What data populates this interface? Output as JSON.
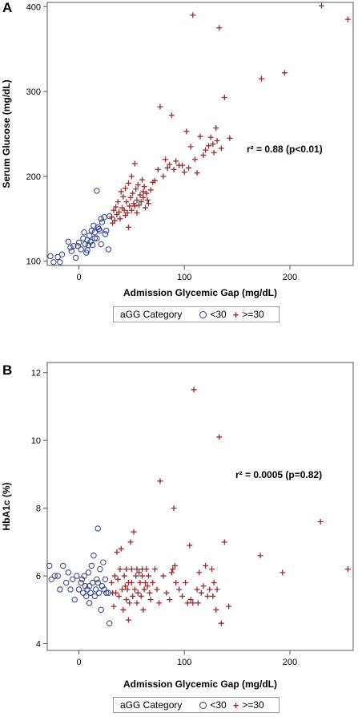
{
  "panels": [
    {
      "letter": "A"
    },
    {
      "letter": "B"
    }
  ],
  "legend": {
    "title": "aGG Category",
    "items": [
      {
        "label": "<30",
        "marker": "circle",
        "color": "#2f3f8f"
      },
      {
        "label": ">=30",
        "marker": "plus",
        "color": "#9b2b2b"
      }
    ]
  },
  "chart_data": [
    {
      "type": "scatter",
      "title": "",
      "xlabel": "Admission Glycemic Gap (mg/dL)",
      "ylabel": "Serum Glucose (mg/dL)",
      "xlim": [
        -30,
        260
      ],
      "ylim": [
        95,
        405
      ],
      "xticks": [
        0,
        100,
        200
      ],
      "yticks": [
        100,
        200,
        300,
        400
      ],
      "annotation": "r² = 0.88 (p<0.01)",
      "legend_position": "bottom",
      "series": [
        {
          "name": "<30",
          "marker": "circle",
          "color": "#2f3f8f",
          "points": [
            [
              -27,
              106
            ],
            [
              -24,
              99
            ],
            [
              -20,
              105
            ],
            [
              -18,
              99
            ],
            [
              -16,
              108
            ],
            [
              -10,
              123
            ],
            [
              -8,
              116
            ],
            [
              -7,
              112
            ],
            [
              -5,
              118
            ],
            [
              -3,
              104
            ],
            [
              -1,
              118
            ],
            [
              0,
              122
            ],
            [
              2,
              114
            ],
            [
              4,
              127
            ],
            [
              5,
              134
            ],
            [
              6,
              120
            ],
            [
              7,
              110
            ],
            [
              8,
              113
            ],
            [
              8,
              125
            ],
            [
              9,
              119
            ],
            [
              10,
              130
            ],
            [
              11,
              123
            ],
            [
              12,
              136
            ],
            [
              13,
              119
            ],
            [
              14,
              142
            ],
            [
              15,
              127
            ],
            [
              15,
              134
            ],
            [
              17,
              127
            ],
            [
              17,
              183
            ],
            [
              18,
              140
            ],
            [
              19,
              138
            ],
            [
              20,
              136
            ],
            [
              21,
              120
            ],
            [
              21,
              150
            ],
            [
              22,
              146
            ],
            [
              24,
              152
            ],
            [
              25,
              132
            ],
            [
              26,
              136
            ],
            [
              28,
              114
            ],
            [
              29,
              153
            ]
          ]
        },
        {
          "name": ">=30",
          "marker": "plus",
          "color": "#9b2b2b",
          "points": [
            [
              31,
              152
            ],
            [
              32,
              145
            ],
            [
              33,
              160
            ],
            [
              34,
              148
            ],
            [
              35,
              164
            ],
            [
              36,
              155
            ],
            [
              37,
              170
            ],
            [
              38,
              158
            ],
            [
              39,
              150
            ],
            [
              40,
              182
            ],
            [
              41,
              163
            ],
            [
              42,
              176
            ],
            [
              43,
              160
            ],
            [
              44,
              154
            ],
            [
              44,
              186
            ],
            [
              45,
              170
            ],
            [
              46,
              157
            ],
            [
              47,
              192
            ],
            [
              47,
              140
            ],
            [
              48,
              165
            ],
            [
              49,
              175
            ],
            [
              50,
              160
            ],
            [
              50,
              200
            ],
            [
              51,
              180
            ],
            [
              52,
              168
            ],
            [
              53,
              165
            ],
            [
              53,
              215
            ],
            [
              54,
              185
            ],
            [
              55,
              172
            ],
            [
              55,
              157
            ],
            [
              56,
              190
            ],
            [
              57,
              166
            ],
            [
              58,
              178
            ],
            [
              59,
              170
            ],
            [
              60,
              196
            ],
            [
              61,
              182
            ],
            [
              61,
              175
            ],
            [
              62,
              188
            ],
            [
              63,
              163
            ],
            [
              64,
              180
            ],
            [
              65,
              172
            ],
            [
              66,
              168
            ],
            [
              68,
              184
            ],
            [
              70,
              193
            ],
            [
              72,
              195
            ],
            [
              75,
              208
            ],
            [
              77,
              282
            ],
            [
              80,
              200
            ],
            [
              82,
              220
            ],
            [
              84,
              210
            ],
            [
              86,
              214
            ],
            [
              88,
              272
            ],
            [
              90,
              208
            ],
            [
              92,
              218
            ],
            [
              95,
              213
            ],
            [
              98,
              213
            ],
            [
              100,
              205
            ],
            [
              102,
              253
            ],
            [
              104,
              210
            ],
            [
              106,
              235
            ],
            [
              108,
              390
            ],
            [
              110,
              220
            ],
            [
              112,
              204
            ],
            [
              115,
              247
            ],
            [
              118,
              225
            ],
            [
              120,
              231
            ],
            [
              123,
              236
            ],
            [
              125,
              246
            ],
            [
              127,
              238
            ],
            [
              128,
              228
            ],
            [
              130,
              257
            ],
            [
              131,
              242
            ],
            [
              133,
              375
            ],
            [
              135,
              233
            ],
            [
              138,
              293
            ],
            [
              143,
              245
            ],
            [
              173,
              315
            ],
            [
              195,
              322
            ],
            [
              230,
              401
            ],
            [
              255,
              385
            ]
          ]
        }
      ]
    },
    {
      "type": "scatter",
      "title": "",
      "xlabel": "Admission Glycemic Gap (mg/dL)",
      "ylabel": "HbA1c (%)",
      "xlim": [
        -30,
        260
      ],
      "ylim": [
        3.8,
        12.3
      ],
      "xticks": [
        0,
        100,
        200
      ],
      "yticks": [
        4,
        6,
        8,
        10,
        12
      ],
      "annotation": "r² = 0.0005 (p=0.82)",
      "legend_position": "bottom",
      "series": [
        {
          "name": "<30",
          "marker": "circle",
          "color": "#2f3f8f",
          "points": [
            [
              -28,
              6.3
            ],
            [
              -26,
              5.9
            ],
            [
              -23,
              6.0
            ],
            [
              -20,
              6.0
            ],
            [
              -18,
              5.6
            ],
            [
              -15,
              6.3
            ],
            [
              -12,
              5.8
            ],
            [
              -10,
              6.1
            ],
            [
              -8,
              5.6
            ],
            [
              -6,
              5.9
            ],
            [
              -4,
              5.3
            ],
            [
              -2,
              6.0
            ],
            [
              0,
              5.6
            ],
            [
              2,
              5.8
            ],
            [
              3,
              5.9
            ],
            [
              4,
              5.5
            ],
            [
              5,
              6.0
            ],
            [
              6,
              5.7
            ],
            [
              7,
              5.4
            ],
            [
              8,
              5.6
            ],
            [
              9,
              6.1
            ],
            [
              10,
              5.7
            ],
            [
              10,
              5.2
            ],
            [
              11,
              5.5
            ],
            [
              12,
              6.3
            ],
            [
              13,
              5.8
            ],
            [
              14,
              6.6
            ],
            [
              15,
              5.4
            ],
            [
              16,
              5.6
            ],
            [
              17,
              5.9
            ],
            [
              18,
              7.4
            ],
            [
              18,
              5.8
            ],
            [
              19,
              5.5
            ],
            [
              20,
              6.2
            ],
            [
              21,
              5.0
            ],
            [
              22,
              5.7
            ],
            [
              23,
              6.4
            ],
            [
              24,
              5.6
            ],
            [
              25,
              5.9
            ],
            [
              26,
              5.5
            ],
            [
              28,
              5.5
            ],
            [
              29,
              4.6
            ]
          ]
        },
        {
          "name": ">=30",
          "marker": "plus",
          "color": "#9b2b2b",
          "points": [
            [
              31,
              5.8
            ],
            [
              32,
              5.5
            ],
            [
              33,
              5.1
            ],
            [
              34,
              6.0
            ],
            [
              35,
              5.5
            ],
            [
              36,
              6.7
            ],
            [
              37,
              5.9
            ],
            [
              38,
              5.4
            ],
            [
              39,
              6.2
            ],
            [
              40,
              6.8
            ],
            [
              41,
              5.6
            ],
            [
              42,
              5.0
            ],
            [
              43,
              6.0
            ],
            [
              44,
              5.7
            ],
            [
              45,
              5.3
            ],
            [
              45,
              6.2
            ],
            [
              46,
              5.6
            ],
            [
              47,
              4.7
            ],
            [
              47,
              5.8
            ],
            [
              48,
              5.2
            ],
            [
              49,
              7.0
            ],
            [
              50,
              5.8
            ],
            [
              50,
              6.2
            ],
            [
              51,
              5.4
            ],
            [
              52,
              7.3
            ],
            [
              53,
              5.6
            ],
            [
              54,
              6.0
            ],
            [
              55,
              5.2
            ],
            [
              55,
              6.2
            ],
            [
              56,
              5.5
            ],
            [
              57,
              6.1
            ],
            [
              58,
              5.8
            ],
            [
              59,
              5.4
            ],
            [
              60,
              6.0
            ],
            [
              60,
              6.2
            ],
            [
              61,
              5.0
            ],
            [
              62,
              5.6
            ],
            [
              63,
              5.8
            ],
            [
              64,
              6.2
            ],
            [
              65,
              5.7
            ],
            [
              66,
              6.0
            ],
            [
              67,
              5.5
            ],
            [
              68,
              5.3
            ],
            [
              70,
              5.8
            ],
            [
              72,
              6.2
            ],
            [
              74,
              5.6
            ],
            [
              76,
              5.2
            ],
            [
              77,
              8.8
            ],
            [
              80,
              6.0
            ],
            [
              83,
              5.5
            ],
            [
              86,
              5.3
            ],
            [
              88,
              6.1
            ],
            [
              89,
              6.2
            ],
            [
              90,
              8.0
            ],
            [
              91,
              6.3
            ],
            [
              92,
              5.8
            ],
            [
              95,
              5.6
            ],
            [
              98,
              5.4
            ],
            [
              101,
              5.8
            ],
            [
              103,
              5.2
            ],
            [
              105,
              6.9
            ],
            [
              106,
              5.3
            ],
            [
              108,
              5.2
            ],
            [
              109,
              11.5
            ],
            [
              112,
              5.6
            ],
            [
              113,
              5.2
            ],
            [
              114,
              6.1
            ],
            [
              116,
              5.5
            ],
            [
              118,
              5.7
            ],
            [
              120,
              6.3
            ],
            [
              122,
              5.4
            ],
            [
              124,
              5.6
            ],
            [
              126,
              6.2
            ],
            [
              127,
              5.4
            ],
            [
              128,
              5.8
            ],
            [
              130,
              5.0
            ],
            [
              131,
              5.6
            ],
            [
              133,
              10.1
            ],
            [
              135,
              4.6
            ],
            [
              138,
              7.0
            ],
            [
              142,
              5.1
            ],
            [
              172,
              6.6
            ],
            [
              193,
              6.1
            ],
            [
              229,
              7.6
            ],
            [
              255,
              6.2
            ]
          ]
        }
      ]
    }
  ]
}
